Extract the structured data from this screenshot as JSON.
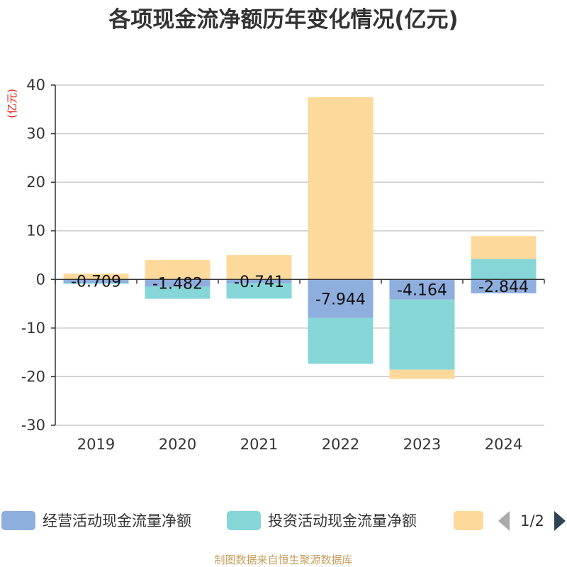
{
  "chart_data": {
    "type": "bar",
    "stacked": true,
    "title": "各项现金流净额历年变化情况(亿元)",
    "ylabel": "(亿元)",
    "xlabel": "",
    "ylim": [
      -30,
      40
    ],
    "yticks": [
      -30,
      -20,
      -10,
      0,
      10,
      20,
      30,
      40
    ],
    "categories": [
      "2019",
      "2020",
      "2021",
      "2022",
      "2023",
      "2024"
    ],
    "series": [
      {
        "name": "经营活动现金流量净额",
        "color": "#8eaede",
        "values": [
          -0.709,
          -1.482,
          -0.741,
          -7.944,
          -4.164,
          -2.844
        ],
        "labels": [
          "-0.709",
          "-1.482",
          "-0.741",
          "-7.944",
          "-4.164",
          "-2.844"
        ]
      },
      {
        "name": "投资活动现金流量净额",
        "color": "#86d6d8",
        "values": [
          -0.2,
          -2.5,
          -3.2,
          -9.4,
          -14.4,
          4.2
        ],
        "labels": []
      },
      {
        "name": "",
        "color": "#fdd99b",
        "values": [
          1.2,
          4.0,
          5.0,
          37.5,
          -1.9,
          4.7
        ],
        "labels": []
      }
    ],
    "legend": {
      "position": "bottom",
      "page_indicator": "1/2"
    }
  },
  "source": "制图数据来自恒生聚源数据库"
}
